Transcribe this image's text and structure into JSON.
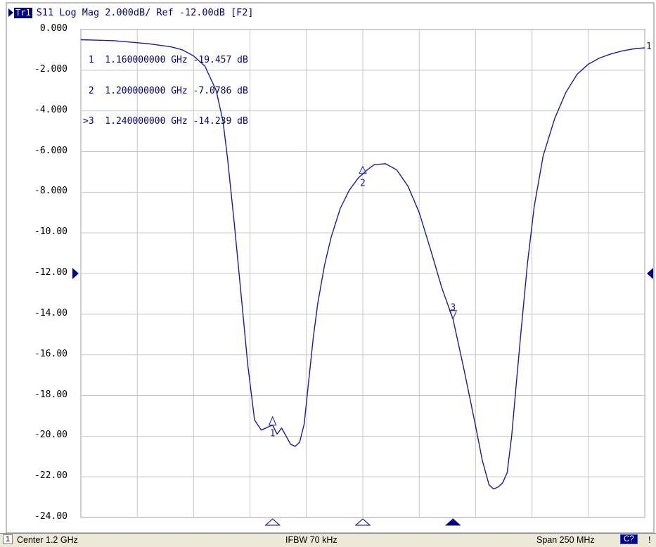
{
  "header": {
    "trace_tag": "Tr1",
    "trace_info": "S11 Log Mag 2.000dB/ Ref -12.00dB [F2]"
  },
  "marker_table": [
    {
      "id": "1",
      "active_mark": "",
      "freq": "1.160000000 GHz",
      "value": "-19.457 dB"
    },
    {
      "id": "2",
      "active_mark": "",
      "freq": "1.200000000 GHz",
      "value": "-7.0786 dB"
    },
    {
      "id": "3",
      "active_mark": ">",
      "freq": "1.240000000 GHz",
      "value": "-14.239 dB"
    }
  ],
  "status_bar": {
    "channel": "1",
    "center": "Center 1.2 GHz",
    "ifbw": "IFBW 70 kHz",
    "span": "Span 250 MHz",
    "badge": "C?",
    "flag": "!"
  },
  "colors": {
    "trace": "#1c1c9a",
    "text": "#000080",
    "grid": "#c8c8c8"
  },
  "chart_data": {
    "type": "line",
    "title": "S11 Log Mag 2.000dB/ Ref -12.00dB [F2]",
    "xlabel": "",
    "ylabel": "",
    "xlim": [
      1.075,
      1.325
    ],
    "ylim": [
      -24,
      0
    ],
    "y_ticks": [
      "0.000",
      "-2.000",
      "-4.000",
      "-6.000",
      "-8.000",
      "-10.00",
      "-12.00",
      "-14.00",
      "-16.00",
      "-18.00",
      "-20.00",
      "-22.00",
      "-24.00"
    ],
    "reference_level": -12,
    "grid": true,
    "series": [
      {
        "x": [
          1.075,
          1.09,
          1.105,
          1.115,
          1.12,
          1.125,
          1.13,
          1.135,
          1.138,
          1.14,
          1.143,
          1.146,
          1.149,
          1.152,
          1.155,
          1.157,
          1.159,
          1.16,
          1.162,
          1.164,
          1.166,
          1.168,
          1.17,
          1.172,
          1.174,
          1.176,
          1.178,
          1.18,
          1.183,
          1.186,
          1.19,
          1.194,
          1.198,
          1.202,
          1.205,
          1.21,
          1.215,
          1.22,
          1.225,
          1.23,
          1.235,
          1.24,
          1.245,
          1.25,
          1.253,
          1.256,
          1.258,
          1.26,
          1.262,
          1.264,
          1.266,
          1.268,
          1.27,
          1.273,
          1.276,
          1.28,
          1.285,
          1.29,
          1.295,
          1.3,
          1.305,
          1.31,
          1.315,
          1.32,
          1.325
        ],
        "y": [
          -0.5,
          -0.55,
          -0.7,
          -0.85,
          -1.0,
          -1.3,
          -1.8,
          -3.0,
          -4.5,
          -6.3,
          -9.5,
          -13.0,
          -16.5,
          -19.2,
          -19.7,
          -19.6,
          -19.5,
          -19.46,
          -19.9,
          -19.6,
          -20.0,
          -20.4,
          -20.5,
          -20.3,
          -19.4,
          -17.3,
          -15.2,
          -13.5,
          -11.6,
          -10.2,
          -8.8,
          -7.9,
          -7.3,
          -6.9,
          -6.65,
          -6.6,
          -6.9,
          -7.7,
          -9.0,
          -10.8,
          -12.7,
          -14.24,
          -16.8,
          -19.5,
          -21.2,
          -22.4,
          -22.6,
          -22.5,
          -22.3,
          -21.8,
          -20.0,
          -17.5,
          -15.0,
          -11.5,
          -8.7,
          -6.2,
          -4.4,
          -3.1,
          -2.2,
          -1.7,
          -1.4,
          -1.2,
          -1.05,
          -0.95,
          -0.9
        ]
      }
    ],
    "markers": [
      {
        "label": "1",
        "x": 1.16,
        "y": -19.457
      },
      {
        "label": "2",
        "x": 1.2,
        "y": -7.0786
      },
      {
        "label": "3",
        "x": 1.24,
        "y": -14.239
      }
    ],
    "end_marker_label": "1"
  }
}
